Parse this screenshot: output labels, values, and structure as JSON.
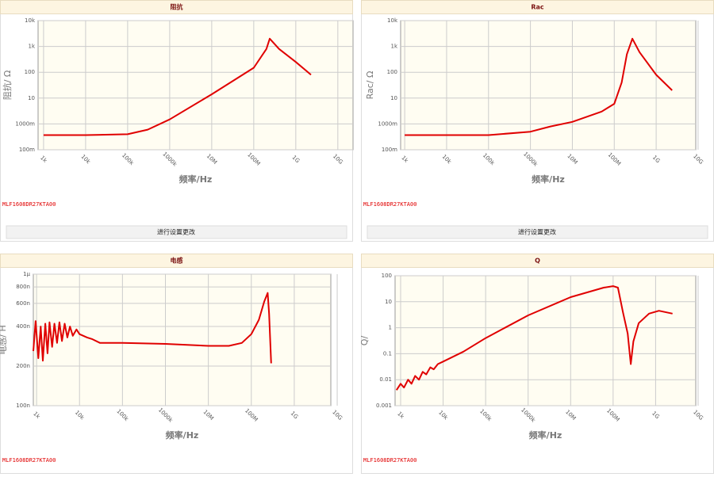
{
  "chart_data": [
    {
      "type": "line",
      "title": "阻抗",
      "x_label": "频率/Hz",
      "y_label": "阻抗/ Ω",
      "annotation": "MLF1608DR27KTA00",
      "color": "#e00000",
      "log_x": true,
      "log_y": true,
      "grid": true,
      "xlim": [
        740,
        23000000000
      ],
      "ylim": [
        0.1,
        10000
      ],
      "xticks": [
        {
          "value": 1000,
          "label": "1k"
        },
        {
          "value": 10000,
          "label": "10k"
        },
        {
          "value": 100000,
          "label": "100k"
        },
        {
          "value": 1000000,
          "label": "1000k"
        },
        {
          "value": 10000000,
          "label": "10M"
        },
        {
          "value": 100000000,
          "label": "100M"
        },
        {
          "value": 1000000000,
          "label": "1G"
        },
        {
          "value": 10000000000,
          "label": "10G"
        }
      ],
      "yticks": [
        {
          "value": 0.1,
          "label": "100m"
        },
        {
          "value": 1,
          "label": "1000m"
        },
        10,
        100,
        {
          "value": 1000,
          "label": "1k"
        },
        {
          "value": 10000,
          "label": "10k"
        }
      ],
      "x": [
        1000,
        10000,
        100000,
        300000,
        1000000,
        10000000,
        100000000,
        200000000,
        240000000,
        400000000,
        1000000000,
        2300000000
      ],
      "values": [
        0.37,
        0.37,
        0.4,
        0.6,
        1.5,
        14,
        150,
        800,
        2000,
        800,
        250,
        80
      ]
    },
    {
      "type": "line",
      "title": "Rac",
      "x_label": "频率/Hz",
      "y_label": "Rac/ Ω",
      "annotation": "MLF1608DR27KTA00",
      "color": "#e00000",
      "log_x": true,
      "log_y": true,
      "grid": true,
      "xlim": [
        800,
        8800000000
      ],
      "ylim": [
        0.1,
        10000
      ],
      "xticks": [
        {
          "value": 1000,
          "label": "1k"
        },
        {
          "value": 10000,
          "label": "10k"
        },
        {
          "value": 100000,
          "label": "100k"
        },
        {
          "value": 1000000,
          "label": "1000k"
        },
        {
          "value": 10000000,
          "label": "10M"
        },
        {
          "value": 100000000,
          "label": "100M"
        },
        {
          "value": 1000000000,
          "label": "1G"
        },
        {
          "value": 10000000000,
          "label": "10G"
        }
      ],
      "yticks": [
        {
          "value": 0.1,
          "label": "100m"
        },
        {
          "value": 1,
          "label": "1000m"
        },
        10,
        100,
        {
          "value": 1000,
          "label": "1k"
        },
        {
          "value": 10000,
          "label": "10k"
        }
      ],
      "x": [
        1000,
        100000,
        1000000,
        3000000,
        10000000,
        50000000,
        100000000,
        150000000,
        200000000,
        270000000,
        400000000,
        1000000000,
        2400000000
      ],
      "values": [
        0.37,
        0.37,
        0.5,
        0.8,
        1.2,
        3,
        6,
        40,
        500,
        2000,
        600,
        80,
        20
      ]
    },
    {
      "type": "line",
      "title": "电感",
      "x_label": "频率/Hz",
      "y_label": "电感/ H",
      "annotation": "MLF1608DR27KTA00",
      "color": "#e00000",
      "log_x": true,
      "log_y": true,
      "grid": true,
      "xlim": [
        840,
        7100000000
      ],
      "ylim": [
        1e-07,
        1e-06
      ],
      "xticks": [
        {
          "value": 1000,
          "label": "1k"
        },
        {
          "value": 10000,
          "label": "10k"
        },
        {
          "value": 100000,
          "label": "100k"
        },
        {
          "value": 1000000,
          "label": "1000k"
        },
        {
          "value": 10000000,
          "label": "10M"
        },
        {
          "value": 100000000,
          "label": "100M"
        },
        {
          "value": 1000000000,
          "label": "1G"
        },
        {
          "value": 10000000000,
          "label": "10G"
        }
      ],
      "yticks": [
        {
          "value": 1e-07,
          "label": "100n"
        },
        {
          "value": 2e-07,
          "label": "200n"
        },
        {
          "value": 4e-07,
          "label": "400n"
        },
        {
          "value": 6e-07,
          "label": "600n"
        },
        {
          "value": 8e-07,
          "label": "800n"
        },
        {
          "value": 1e-06,
          "label": "1μ"
        }
      ],
      "x": [
        840,
        950,
        1100,
        1250,
        1400,
        1600,
        1800,
        2000,
        2300,
        2600,
        3000,
        3400,
        3900,
        4500,
        5200,
        6000,
        7000,
        8500,
        10000,
        15000,
        20000,
        30000,
        50000,
        100000,
        1000000,
        10000000,
        30000000,
        60000000,
        100000000,
        150000000,
        200000000,
        240000000,
        260000000,
        290000000
      ],
      "values": [
        2.6e-07,
        4.4e-07,
        2.3e-07,
        4e-07,
        2.2e-07,
        4.2e-07,
        2.5e-07,
        4.3e-07,
        2.8e-07,
        4.2e-07,
        3e-07,
        4.3e-07,
        3.1e-07,
        4.2e-07,
        3.3e-07,
        4e-07,
        3.4e-07,
        3.8e-07,
        3.5e-07,
        3.3e-07,
        3.2e-07,
        3e-07,
        3e-07,
        3e-07,
        2.95e-07,
        2.85e-07,
        2.85e-07,
        3e-07,
        3.5e-07,
        4.5e-07,
        6.2e-07,
        7.2e-07,
        5e-07,
        2.1e-07
      ]
    },
    {
      "type": "line",
      "title": "Q",
      "x_label": "频率/Hz",
      "y_label": "Q/",
      "annotation": "MLF1608DR27KTA00",
      "color": "#e00000",
      "log_x": true,
      "log_y": true,
      "grid": true,
      "xlim": [
        740,
        8800000000
      ],
      "ylim": [
        0.001,
        100
      ],
      "xticks": [
        {
          "value": 1000,
          "label": "1k"
        },
        {
          "value": 10000,
          "label": "10k"
        },
        {
          "value": 100000,
          "label": "100k"
        },
        {
          "value": 1000000,
          "label": "1000k"
        },
        {
          "value": 10000000,
          "label": "10M"
        },
        {
          "value": 100000000,
          "label": "100M"
        },
        {
          "value": 1000000000,
          "label": "1G"
        },
        {
          "value": 10000000000,
          "label": "10G"
        }
      ],
      "yticks": [
        0.001,
        0.01,
        0.1,
        1,
        10,
        100
      ],
      "x": [
        800,
        1000,
        1200,
        1500,
        1800,
        2200,
        2700,
        3300,
        4000,
        5000,
        6000,
        7500,
        10000,
        30000,
        100000,
        1000000,
        10000000,
        60000000,
        100000000,
        130000000,
        170000000,
        220000000,
        260000000,
        300000000,
        400000000,
        700000000,
        1200000000,
        2500000000
      ],
      "values": [
        0.004,
        0.007,
        0.005,
        0.01,
        0.007,
        0.014,
        0.01,
        0.02,
        0.016,
        0.03,
        0.025,
        0.04,
        0.05,
        0.12,
        0.4,
        3,
        15,
        35,
        40,
        35,
        4,
        0.6,
        0.04,
        0.3,
        1.5,
        3.5,
        4.5,
        3.5
      ]
    }
  ],
  "buttons": [
    "进行设置更改",
    "进行设置更改"
  ]
}
